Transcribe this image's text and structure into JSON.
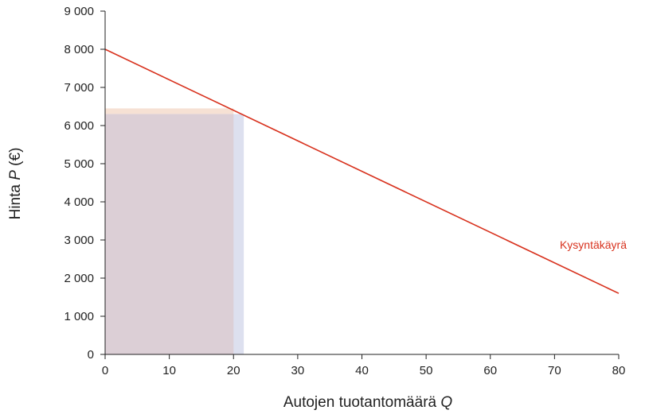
{
  "chart_data": {
    "type": "line",
    "xlabel_text": "Autojen tuotantomäärä ",
    "xlabel_var": "Q",
    "ylabel_text": "Hinta ",
    "ylabel_var": "P",
    "ylabel_unit": " (€)",
    "xlim": [
      0,
      80
    ],
    "ylim": [
      0,
      9000
    ],
    "x_ticks": [
      0,
      10,
      20,
      30,
      40,
      50,
      60,
      70,
      80
    ],
    "x_tick_labels": [
      "0",
      "10",
      "20",
      "30",
      "40",
      "50",
      "60",
      "70",
      "80"
    ],
    "y_ticks": [
      0,
      1000,
      2000,
      3000,
      4000,
      5000,
      6000,
      7000,
      8000,
      9000
    ],
    "y_tick_labels": [
      "0",
      "1 000",
      "2 000",
      "3 000",
      "4 000",
      "5 000",
      "6 000",
      "7 000",
      "8 000",
      "9 000"
    ],
    "series": [
      {
        "name": "Kysyntäkäyrä",
        "color": "#d8321e",
        "x": [
          0,
          80
        ],
        "y": [
          8000,
          1600
        ]
      }
    ],
    "areas": [
      {
        "x": [
          0,
          21.6
        ],
        "y": [
          0,
          6300
        ],
        "color": "#dde0ef"
      },
      {
        "x": [
          0,
          20
        ],
        "y": [
          6300,
          6450
        ],
        "color": "#f6e1d4"
      },
      {
        "x": [
          0,
          20
        ],
        "y": [
          0,
          6300
        ],
        "color": "#dccfd6"
      }
    ],
    "grid": false
  }
}
